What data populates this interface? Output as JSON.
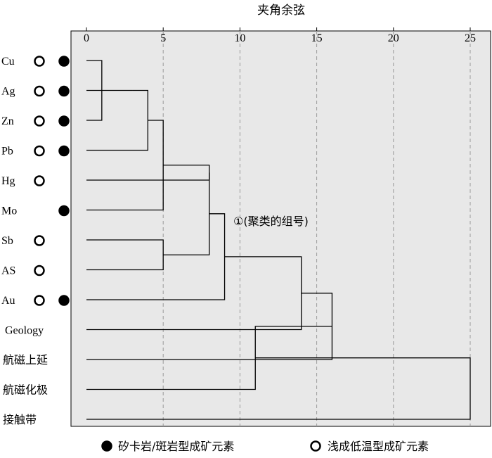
{
  "chart_data": {
    "type": "dendrogram",
    "title": "夹角余弦",
    "x_axis": {
      "ticks": [
        0,
        5,
        10,
        15,
        20,
        25
      ],
      "range": [
        0,
        26
      ],
      "grid": "dashed-vertical"
    },
    "leaves": [
      {
        "label": "Cu",
        "deposit_type_markers": [
          "open",
          "filled"
        ]
      },
      {
        "label": "Ag",
        "deposit_type_markers": [
          "open",
          "filled"
        ]
      },
      {
        "label": "Zn",
        "deposit_type_markers": [
          "open",
          "filled"
        ]
      },
      {
        "label": "Pb",
        "deposit_type_markers": [
          "open",
          "filled"
        ]
      },
      {
        "label": "Hg",
        "deposit_type_markers": [
          "open"
        ]
      },
      {
        "label": "Mo",
        "deposit_type_markers": [
          "filled"
        ]
      },
      {
        "label": "Sb",
        "deposit_type_markers": [
          "open"
        ]
      },
      {
        "label": "AS",
        "deposit_type_markers": [
          "open"
        ]
      },
      {
        "label": "Au",
        "deposit_type_markers": [
          "open",
          "filled"
        ]
      },
      {
        "label": "Geology",
        "deposit_type_markers": []
      },
      {
        "label": "航磁上延",
        "deposit_type_markers": []
      },
      {
        "label": "航磁化极",
        "deposit_type_markers": []
      },
      {
        "label": "接触带",
        "deposit_type_markers": []
      }
    ],
    "merges": [
      {
        "a": "Cu",
        "b": "Zn",
        "height": 1
      },
      {
        "a": "Ag",
        "b": "m1",
        "height": 3
      },
      {
        "a": "m2",
        "b": "Pb",
        "height": 4
      },
      {
        "a": "m3",
        "b": "Mo",
        "height": 5
      },
      {
        "a": "Hg",
        "b": "m4",
        "height": 8
      },
      {
        "a": "Sb",
        "b": "AS",
        "height": 5
      },
      {
        "a": "m5",
        "b": "m6",
        "height": 8
      },
      {
        "a": "m7",
        "b": "Au",
        "height": 9
      },
      {
        "a": "m8",
        "b": "Geology",
        "height": 14
      },
      {
        "a": "m9",
        "b": "航磁上延",
        "height": 16
      },
      {
        "a": "m10",
        "b": "航磁化极",
        "height": 11
      },
      {
        "a": "m11",
        "b": "接触带",
        "height": 25
      }
    ],
    "annotation": {
      "text": "①(聚类的组号)"
    },
    "legend": [
      {
        "marker": "filled",
        "label": "矽卡岩/斑岩型成矿元素"
      },
      {
        "marker": "open",
        "label": "浅成低温型成矿元素"
      }
    ],
    "colors": {
      "plot_background": "#e8e8e8",
      "line": "#000000",
      "grid": "#9a9a9a"
    }
  }
}
